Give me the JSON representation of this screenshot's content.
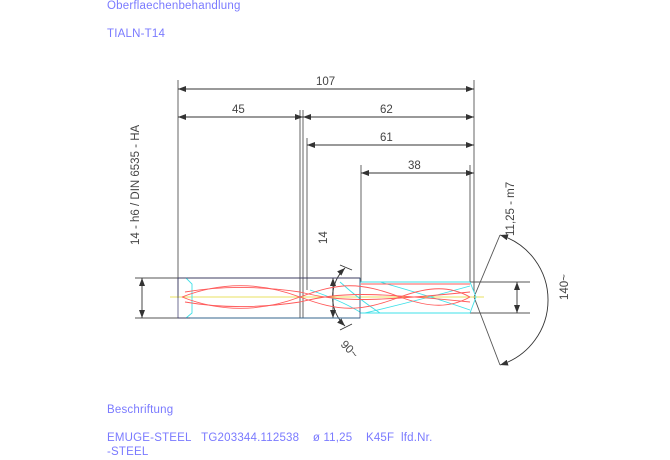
{
  "header": {
    "surface_treatment_label": "Oberflaechenbehandlung",
    "surface_treatment_value": "TIALN-T14"
  },
  "drawing": {
    "shank_spec": "14 - h6 / DIN 6535 - HA",
    "diameter_spec": "11,25 - m7",
    "dimensions": {
      "overall_length": "107",
      "shank_length": "45",
      "flute_section": "62",
      "flute_length": "61",
      "body_length": "38",
      "shank_diameter": "14",
      "point_angle": "140~",
      "chamfer_angle": "90~"
    },
    "colors": {
      "dimension": "#555555",
      "outline_cyan": "#3fe0e8",
      "flute_red": "#ff5a5a",
      "centerline": "#e8e060",
      "text_blue": "#7a7aff"
    }
  },
  "footer": {
    "label": "Beschriftung",
    "line1": "EMUGE-STEEL   TG203344.112538    ø 11,25    K45F  lfd.Nr.",
    "line2": "-STEEL"
  }
}
